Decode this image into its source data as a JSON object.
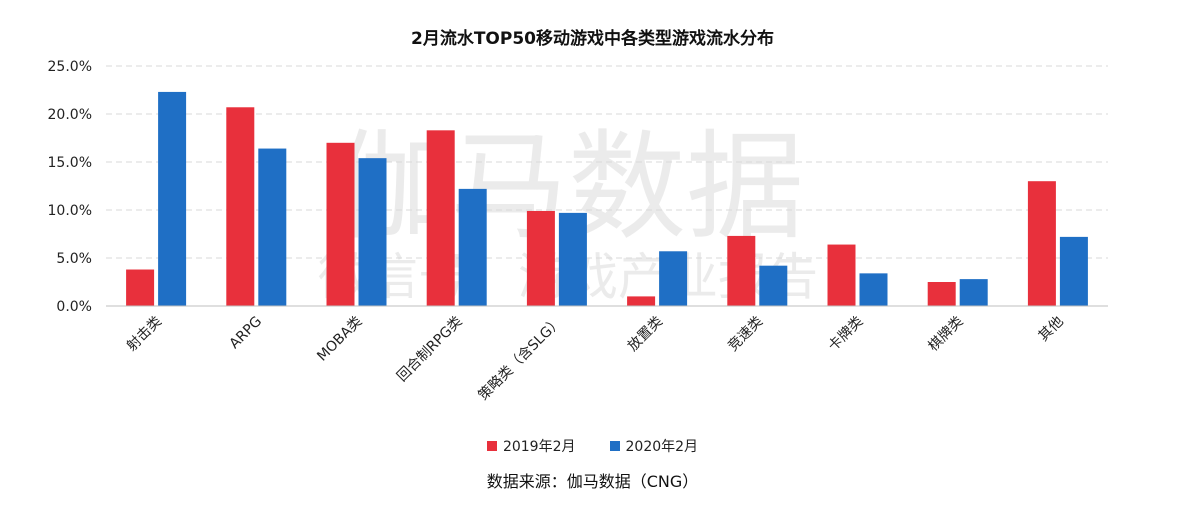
{
  "chart_data": {
    "type": "bar",
    "title": "2月流水TOP50移动游戏中各类型游戏流水分布",
    "xlabel": "",
    "ylabel": "",
    "ylim": [
      0,
      25
    ],
    "yticks": [
      "0.0%",
      "5.0%",
      "10.0%",
      "15.0%",
      "20.0%",
      "25.0%"
    ],
    "categories": [
      "射击类",
      "ARPG",
      "MOBA类",
      "回合制RPG类",
      "策略类（含SLG）",
      "放置类",
      "竞速类",
      "卡牌类",
      "棋牌类",
      "其他"
    ],
    "series": [
      {
        "name": "2019年2月",
        "color": "#e8303c",
        "values": [
          3.8,
          20.7,
          17.0,
          18.3,
          9.9,
          1.0,
          7.3,
          6.4,
          2.5,
          13.0
        ]
      },
      {
        "name": "2020年2月",
        "color": "#1f6fc5",
        "values": [
          22.3,
          16.4,
          15.4,
          12.2,
          9.7,
          5.7,
          4.2,
          3.4,
          2.8,
          7.2
        ]
      }
    ],
    "grid": true,
    "legend_position": "bottom-center"
  },
  "watermark": {
    "line1": "伽马数据",
    "line2": "微信号：游戏产业报告"
  },
  "source_note": "数据来源：伽马数据（CNG）"
}
